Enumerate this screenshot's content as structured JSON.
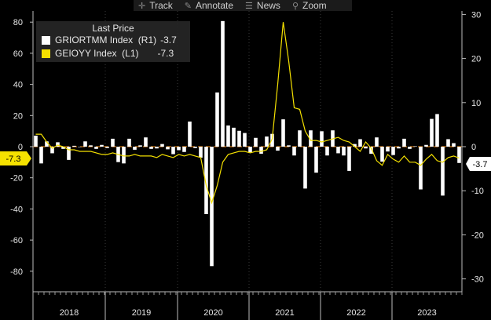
{
  "toolbar": {
    "track": "Track",
    "annotate": "Annotate",
    "news": "News",
    "zoom": "Zoom"
  },
  "legend": {
    "title": "Last Price",
    "entries": [
      {
        "name": "GRIORTMM Index  (R1)",
        "value": "-3.7",
        "color": "#ffffff"
      },
      {
        "name": "GEIOYY Index  (L1)",
        "value": "-7.3",
        "color": "#f5e100"
      }
    ]
  },
  "chart_data": {
    "type": "bar",
    "x_labels": [
      "2018",
      "2019",
      "2020",
      "2021",
      "2022",
      "2023"
    ],
    "left_axis": {
      "ticks": [
        80,
        60,
        40,
        20,
        0,
        -20,
        -40,
        -60,
        -80
      ],
      "range": [
        -90,
        90
      ]
    },
    "right_axis": {
      "ticks": [
        30,
        20,
        10,
        0,
        -10,
        -20,
        -30
      ],
      "range": [
        -31.8,
        31.8
      ]
    },
    "last_value_left": "-7.3",
    "last_value_right": "-3.7",
    "series": [
      {
        "name": "GRIORTMM Index  (R1)",
        "type": "bar",
        "axis": "right",
        "color": "#ffffff",
        "values": [
          2.5,
          -3.8,
          1.2,
          -1.5,
          1.0,
          -0.5,
          -3.0,
          0.2,
          0.0,
          1.2,
          0.3,
          -0.5,
          0.4,
          -0.3,
          1.8,
          -3.5,
          -3.8,
          1.8,
          -0.7,
          0.3,
          2.1,
          -0.5,
          -0.4,
          0.6,
          -0.6,
          -1.7,
          -0.8,
          -1.2,
          5.7,
          -0.3,
          -2.5,
          -15.3,
          -27.1,
          12.3,
          28.5,
          4.8,
          4.3,
          3.6,
          3.1,
          -1.3,
          2.0,
          -1.6,
          2.3,
          2.9,
          -0.9,
          6.2,
          0.3,
          -2.0,
          3.7,
          -9.5,
          3.7,
          -5.9,
          3.5,
          -2.0,
          3.7,
          -1.5,
          -2.0,
          -5.5,
          0.6,
          1.7,
          -0.4,
          -1.6,
          2.1,
          -3.4,
          -1.1,
          -1.9,
          -0.4,
          1.8,
          -0.5,
          0.1,
          -9.7,
          0.4,
          6.3,
          7.4,
          -11.1,
          1.7,
          0.8,
          -3.7
        ]
      },
      {
        "name": "GEIOYY Index  (L1)",
        "type": "line",
        "axis": "left",
        "color": "#f5e100",
        "values": [
          8,
          8,
          3,
          -1,
          1,
          0,
          -2,
          -2,
          -3,
          -3,
          -3,
          -4,
          -5,
          -5,
          -4,
          -5,
          -6,
          -6,
          -5,
          -6,
          -6,
          -6,
          -7,
          -5,
          -6,
          -7,
          -5,
          -6,
          -5,
          -6,
          -7,
          -25,
          -36,
          -25,
          -10,
          -5,
          -4,
          -3,
          -3,
          -4,
          -3,
          -3,
          -2,
          5,
          40,
          80,
          55,
          25,
          24,
          10,
          4,
          4,
          3,
          4,
          5,
          6,
          4,
          3,
          0,
          -3,
          3,
          -1,
          -9,
          -12,
          -5,
          -8,
          -10,
          -6,
          -10,
          -10,
          -12,
          -8,
          -5,
          -9,
          -10,
          -7,
          -6,
          -7.3
        ]
      }
    ]
  }
}
